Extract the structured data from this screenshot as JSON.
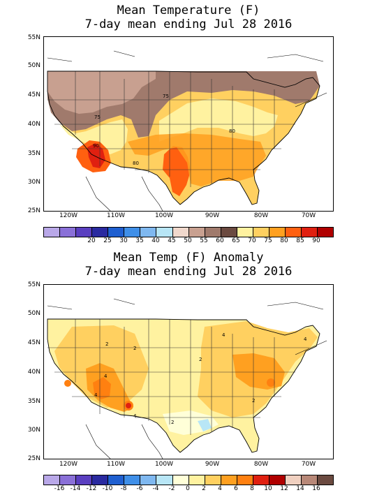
{
  "map1": {
    "title_line1": "Mean Temperature (F)",
    "title_line2": "7-day mean ending Jul 28 2016",
    "lat_labels": [
      "55N",
      "50N",
      "45N",
      "40N",
      "35N",
      "30N",
      "25N"
    ],
    "lon_labels": [
      "120W",
      "110W",
      "100W",
      "90W",
      "80W",
      "70W"
    ],
    "contour_labels": [
      "75",
      "75",
      "80",
      "90",
      "80"
    ],
    "legend": {
      "colors": [
        "#b9a8e8",
        "#8a70d8",
        "#5a3fc0",
        "#2a2aa0",
        "#1f5fd0",
        "#3f8fe8",
        "#7fb8f0",
        "#b8e6f6",
        "#f0d8cc",
        "#c8a090",
        "#a07a6c",
        "#6b4a40",
        "#fff2a0",
        "#ffd060",
        "#ffa020",
        "#ff6010",
        "#e02010",
        "#b00000"
      ],
      "ticks": [
        "20",
        "25",
        "30",
        "35",
        "40",
        "45",
        "50",
        "55",
        "60",
        "65",
        "70",
        "75",
        "80",
        "85",
        "90"
      ]
    }
  },
  "map2": {
    "title_line1": "Mean Temp (F) Anomaly",
    "title_line2": "7-day mean ending Jul 28 2016",
    "lat_labels": [
      "55N",
      "50N",
      "45N",
      "40N",
      "35N",
      "30N",
      "25N"
    ],
    "lon_labels": [
      "120W",
      "110W",
      "100W",
      "90W",
      "80W",
      "70W"
    ],
    "contour_labels": [
      "2",
      "2",
      "4",
      "2",
      "4",
      "4",
      "2",
      "2",
      "4",
      "4"
    ],
    "legend": {
      "colors": [
        "#b9a8e8",
        "#8a70d8",
        "#5a3fc0",
        "#2a2aa0",
        "#1f5fd0",
        "#3f8fe8",
        "#7fb8f0",
        "#b8e6f6",
        "#ffffd8",
        "#fff2a0",
        "#ffd060",
        "#ffa020",
        "#ff8010",
        "#e02010",
        "#b00000",
        "#f0d0c0",
        "#b88878",
        "#6b4a40"
      ],
      "ticks": [
        "-16",
        "-14",
        "-12",
        "-10",
        "-8",
        "-6",
        "-4",
        "-2",
        "0",
        "2",
        "4",
        "6",
        "8",
        "10",
        "12",
        "14",
        "16"
      ]
    }
  }
}
